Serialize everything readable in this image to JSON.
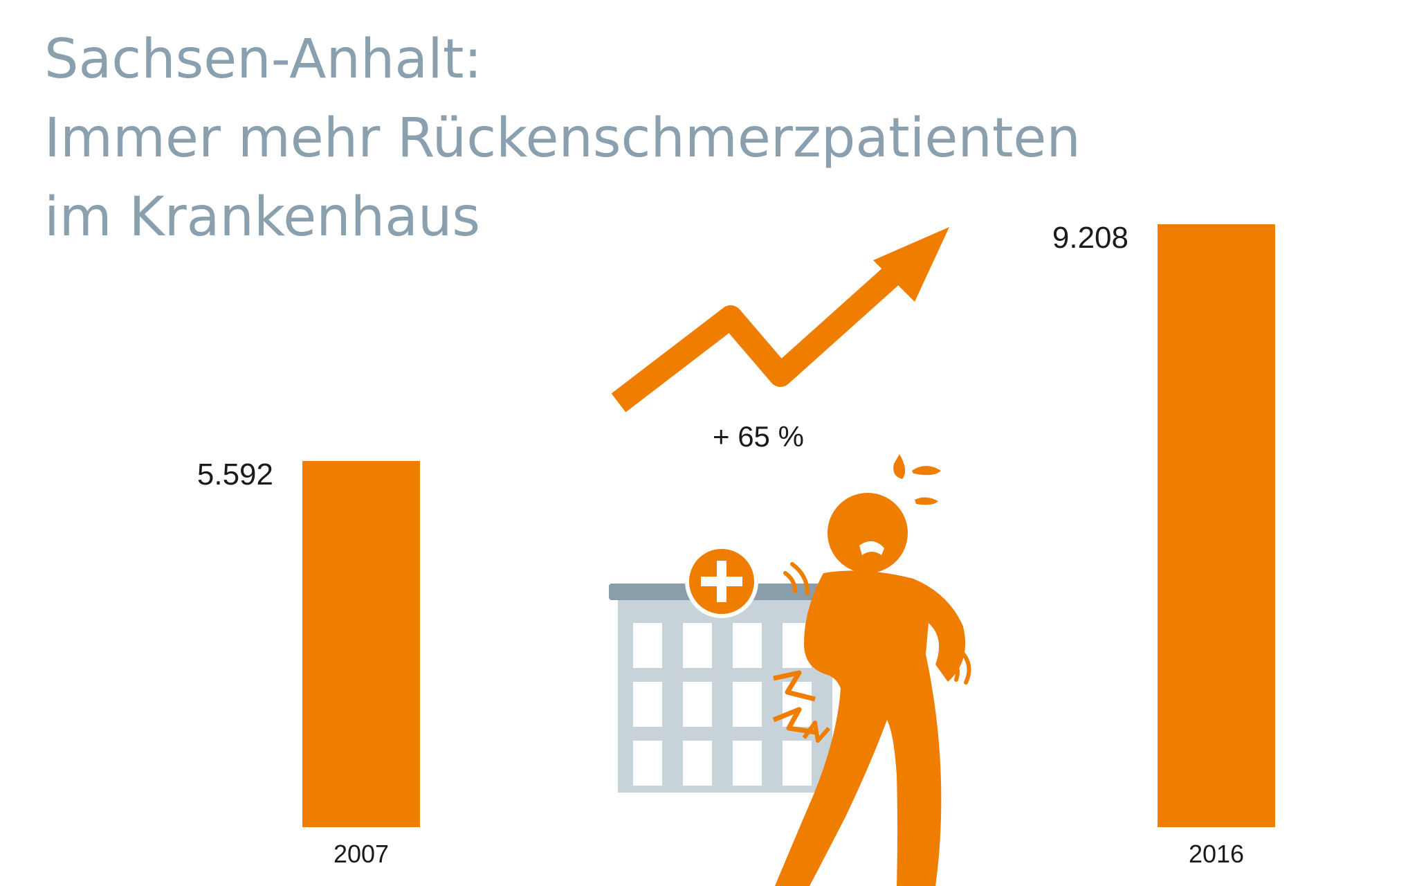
{
  "chart_data": {
    "type": "bar",
    "title": [
      "Sachsen-Anhalt:",
      "Immer mehr Rückenschmerzpatienten",
      "im Krankenhaus"
    ],
    "categories": [
      "2007",
      "2016"
    ],
    "values": [
      5592,
      9208
    ],
    "value_labels": [
      "5.592",
      "9.208"
    ],
    "change_label": "+ 65 %",
    "ylim": [
      0,
      9208
    ],
    "grid": false,
    "legend": "none"
  },
  "colors": {
    "bar": "#ee7d00",
    "title": "#8aa0ae",
    "building": "#c7d2d9",
    "building_roof": "#8a9daa"
  },
  "icons": [
    "trend-arrow-icon",
    "hospital-building-icon",
    "back-pain-person-icon"
  ]
}
